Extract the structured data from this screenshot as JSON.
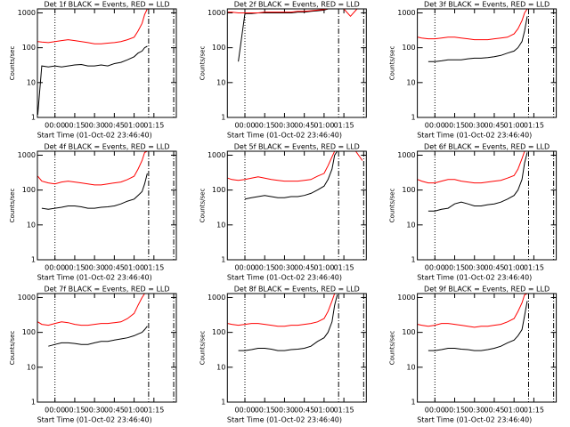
{
  "chart_data": [
    {
      "type": "line",
      "title": "Det 1f BLACK = Events, RED = LLD",
      "xlabel": "Start Time (01-Oct-02 23:46:40)",
      "ylabel": "Counts/sec",
      "yscale": "log",
      "x": [
        -13,
        -10,
        -5,
        0,
        5,
        10,
        15,
        20,
        25,
        30,
        35,
        40,
        45,
        50,
        55,
        60,
        63,
        66,
        68,
        70
      ],
      "series": [
        {
          "name": "Events",
          "color": "#000000",
          "values": [
            1.2,
            30,
            28,
            30,
            28,
            30,
            32,
            33,
            30,
            30,
            32,
            30,
            35,
            38,
            45,
            55,
            70,
            80,
            100,
            110
          ]
        },
        {
          "name": "LLD",
          "color": "#ff0000",
          "values": [
            150,
            145,
            140,
            150,
            160,
            170,
            160,
            150,
            140,
            130,
            130,
            135,
            140,
            150,
            170,
            200,
            300,
            500,
            900,
            1300
          ]
        }
      ],
      "vlines": [
        0,
        71,
        90
      ],
      "vline_styles": [
        "dotted",
        "dash-dot",
        "dash-dot"
      ],
      "xlim": [
        -13.3,
        92
      ],
      "xticks": [
        {
          "value": 0,
          "label": "00:00"
        },
        {
          "value": 15,
          "label": "00:15"
        },
        {
          "value": 30,
          "label": "00:30"
        },
        {
          "value": 45,
          "label": "00:45"
        },
        {
          "value": 60,
          "label": "01:00"
        },
        {
          "value": 75,
          "label": "01:15"
        }
      ],
      "ylim": [
        1,
        1300
      ],
      "yticks": [
        1,
        10,
        100,
        1000
      ]
    },
    {
      "type": "line",
      "title": "Det 2f BLACK = Events, RED = LLD",
      "xlabel": "Start Time (01-Oct-02 23:46:40)",
      "ylabel": "Counts/sec",
      "yscale": "log",
      "x": [
        -13,
        -10,
        -5,
        0,
        5,
        10,
        15,
        20,
        25,
        30,
        35,
        40,
        45,
        50,
        55,
        60,
        63,
        66,
        68,
        70,
        75,
        80,
        85,
        89
      ],
      "series": [
        {
          "name": "Events",
          "color": "#000000",
          "values": [
            null,
            null,
            40,
            950,
            950,
            1000,
            1000,
            1000,
            1000,
            1000,
            1000,
            1050,
            1050,
            1100,
            1150,
            1200,
            1300,
            1300,
            1300,
            1300,
            null,
            null,
            null,
            null
          ]
        },
        {
          "name": "LLD",
          "color": "#ff0000",
          "values": [
            1050,
            1050,
            1000,
            1000,
            1000,
            1000,
            1050,
            1050,
            1050,
            1050,
            1050,
            1100,
            1100,
            1150,
            1200,
            1250,
            1300,
            1300,
            1300,
            1300,
            1300,
            800,
            1300,
            1300
          ]
        }
      ],
      "vlines": [
        0,
        71,
        90
      ],
      "vline_styles": [
        "dotted",
        "dash-dot",
        "dash-dot"
      ],
      "xlim": [
        -13.3,
        92
      ],
      "xticks": [
        {
          "value": 0,
          "label": "00:00"
        },
        {
          "value": 15,
          "label": "00:15"
        },
        {
          "value": 30,
          "label": "00:30"
        },
        {
          "value": 45,
          "label": "00:45"
        },
        {
          "value": 60,
          "label": "01:00"
        },
        {
          "value": 75,
          "label": "01:15"
        }
      ],
      "ylim": [
        1,
        1300
      ],
      "yticks": [
        1,
        10,
        100,
        1000
      ]
    },
    {
      "type": "line",
      "title": "Det 3f BLACK = Events, RED = LLD",
      "xlabel": "Start Time (01-Oct-02 23:46:40)",
      "ylabel": "Counts/sec",
      "yscale": "log",
      "x": [
        -13,
        -10,
        -5,
        0,
        5,
        10,
        15,
        20,
        25,
        30,
        35,
        40,
        45,
        50,
        55,
        60,
        63,
        66,
        68,
        70
      ],
      "series": [
        {
          "name": "Events",
          "color": "#000000",
          "values": [
            null,
            null,
            40,
            40,
            42,
            45,
            45,
            45,
            48,
            50,
            50,
            52,
            55,
            60,
            70,
            80,
            100,
            150,
            300,
            800
          ]
        },
        {
          "name": "LLD",
          "color": "#ff0000",
          "values": [
            200,
            190,
            180,
            180,
            190,
            200,
            200,
            190,
            180,
            170,
            170,
            170,
            180,
            190,
            200,
            250,
            350,
            600,
            1000,
            1300
          ]
        }
      ],
      "vlines": [
        0,
        71,
        90
      ],
      "vline_styles": [
        "dotted",
        "dash-dot",
        "dash-dot"
      ],
      "xlim": [
        -13.3,
        92
      ],
      "xticks": [
        {
          "value": 0,
          "label": "00:00"
        },
        {
          "value": 15,
          "label": "00:15"
        },
        {
          "value": 30,
          "label": "00:30"
        },
        {
          "value": 45,
          "label": "00:45"
        },
        {
          "value": 60,
          "label": "01:00"
        },
        {
          "value": 75,
          "label": "01:15"
        }
      ],
      "ylim": [
        1,
        1300
      ],
      "yticks": [
        1,
        10,
        100,
        1000
      ]
    },
    {
      "type": "line",
      "title": "Det 4f BLACK = Events, RED = LLD",
      "xlabel": "Start Time (01-Oct-02 23:46:40)",
      "ylabel": "Counts/sec",
      "yscale": "log",
      "x": [
        -13,
        -10,
        -5,
        0,
        5,
        10,
        15,
        20,
        25,
        30,
        35,
        40,
        45,
        50,
        55,
        60,
        63,
        66,
        68,
        70
      ],
      "series": [
        {
          "name": "Events",
          "color": "#000000",
          "values": [
            null,
            30,
            28,
            30,
            32,
            35,
            35,
            33,
            30,
            30,
            32,
            33,
            35,
            40,
            48,
            55,
            70,
            90,
            150,
            300
          ]
        },
        {
          "name": "LLD",
          "color": "#ff0000",
          "values": [
            250,
            180,
            160,
            150,
            170,
            180,
            170,
            160,
            150,
            140,
            140,
            150,
            160,
            170,
            200,
            250,
            400,
            700,
            1200,
            1300
          ]
        }
      ],
      "vlines": [
        0,
        71,
        90
      ],
      "vline_styles": [
        "dotted",
        "dash-dot",
        "dash-dot"
      ],
      "xlim": [
        -13.3,
        92
      ],
      "xticks": [
        {
          "value": 0,
          "label": "00:00"
        },
        {
          "value": 15,
          "label": "00:15"
        },
        {
          "value": 30,
          "label": "00:30"
        },
        {
          "value": 45,
          "label": "00:45"
        },
        {
          "value": 60,
          "label": "01:00"
        },
        {
          "value": 75,
          "label": "01:15"
        }
      ],
      "ylim": [
        1,
        1300
      ],
      "yticks": [
        1,
        10,
        100,
        1000
      ]
    },
    {
      "type": "line",
      "title": "Det 5f BLACK = Events, RED = LLD",
      "xlabel": "Start Time (01-Oct-02 23:46:40)",
      "ylabel": "Counts/sec",
      "yscale": "log",
      "x": [
        -13,
        -10,
        -5,
        0,
        5,
        10,
        15,
        20,
        25,
        30,
        35,
        40,
        45,
        50,
        55,
        60,
        63,
        66,
        68,
        70,
        78,
        84,
        89
      ],
      "series": [
        {
          "name": "Events",
          "color": "#000000",
          "values": [
            null,
            null,
            null,
            55,
            60,
            65,
            70,
            65,
            60,
            60,
            65,
            65,
            70,
            80,
            100,
            130,
            200,
            400,
            1000,
            1300,
            null,
            null,
            null
          ]
        },
        {
          "name": "LLD",
          "color": "#ff0000",
          "values": [
            220,
            200,
            190,
            200,
            220,
            240,
            220,
            200,
            190,
            180,
            180,
            180,
            190,
            200,
            250,
            300,
            500,
            900,
            1300,
            1300,
            1300,
            1300,
            700
          ]
        }
      ],
      "vlines": [
        0,
        71,
        90
      ],
      "vline_styles": [
        "dotted",
        "dash-dot",
        "dash-dot"
      ],
      "xlim": [
        -13.3,
        92
      ],
      "xticks": [
        {
          "value": 0,
          "label": "00:00"
        },
        {
          "value": 15,
          "label": "00:15"
        },
        {
          "value": 30,
          "label": "00:30"
        },
        {
          "value": 45,
          "label": "00:45"
        },
        {
          "value": 60,
          "label": "01:00"
        },
        {
          "value": 75,
          "label": "01:15"
        }
      ],
      "ylim": [
        1,
        1300
      ],
      "yticks": [
        1,
        10,
        100,
        1000
      ]
    },
    {
      "type": "line",
      "title": "Det 6f BLACK = Events, RED = LLD",
      "xlabel": "Start Time (01-Oct-02 23:46:40)",
      "ylabel": "Counts/sec",
      "yscale": "log",
      "x": [
        -13,
        -10,
        -5,
        0,
        5,
        10,
        15,
        20,
        25,
        30,
        35,
        40,
        45,
        50,
        55,
        60,
        63,
        66,
        68,
        70
      ],
      "series": [
        {
          "name": "Events",
          "color": "#000000",
          "values": [
            null,
            null,
            25,
            25,
            28,
            30,
            40,
            45,
            40,
            35,
            35,
            38,
            40,
            45,
            55,
            70,
            100,
            200,
            600,
            1200
          ]
        },
        {
          "name": "LLD",
          "color": "#ff0000",
          "values": [
            200,
            180,
            160,
            160,
            180,
            200,
            200,
            180,
            170,
            160,
            160,
            170,
            180,
            190,
            220,
            260,
            400,
            800,
            1300,
            1300
          ]
        }
      ],
      "vlines": [
        0,
        71,
        90
      ],
      "vline_styles": [
        "dotted",
        "dash-dot",
        "dash-dot"
      ],
      "xlim": [
        -13.3,
        92
      ],
      "xticks": [
        {
          "value": 0,
          "label": "00:00"
        },
        {
          "value": 15,
          "label": "00:15"
        },
        {
          "value": 30,
          "label": "00:30"
        },
        {
          "value": 45,
          "label": "00:45"
        },
        {
          "value": 60,
          "label": "01:00"
        },
        {
          "value": 75,
          "label": "01:15"
        }
      ],
      "ylim": [
        1,
        1300
      ],
      "yticks": [
        1,
        10,
        100,
        1000
      ]
    },
    {
      "type": "line",
      "title": "Det 7f BLACK = Events, RED = LLD",
      "xlabel": "Start Time (01-Oct-02 23:46:40)",
      "ylabel": "Counts/sec",
      "yscale": "log",
      "x": [
        -13,
        -10,
        -5,
        0,
        5,
        10,
        15,
        20,
        25,
        30,
        35,
        40,
        45,
        50,
        55,
        60,
        63,
        66,
        68,
        70
      ],
      "series": [
        {
          "name": "Events",
          "color": "#000000",
          "values": [
            null,
            null,
            40,
            45,
            50,
            50,
            48,
            45,
            45,
            50,
            55,
            55,
            60,
            65,
            70,
            80,
            90,
            100,
            120,
            150
          ]
        },
        {
          "name": "LLD",
          "color": "#ff0000",
          "values": [
            200,
            170,
            160,
            180,
            200,
            190,
            170,
            160,
            160,
            170,
            180,
            180,
            190,
            200,
            250,
            350,
            600,
            1000,
            1300,
            1300
          ]
        }
      ],
      "vlines": [
        0,
        71,
        90
      ],
      "vline_styles": [
        "dotted",
        "dash-dot",
        "dash-dot"
      ],
      "xlim": [
        -13.3,
        92
      ],
      "xticks": [
        {
          "value": 0,
          "label": "00:00"
        },
        {
          "value": 15,
          "label": "00:15"
        },
        {
          "value": 30,
          "label": "00:30"
        },
        {
          "value": 45,
          "label": "00:45"
        },
        {
          "value": 60,
          "label": "01:00"
        },
        {
          "value": 75,
          "label": "01:15"
        }
      ],
      "ylim": [
        1,
        1300
      ],
      "yticks": [
        1,
        10,
        100,
        1000
      ]
    },
    {
      "type": "line",
      "title": "Det 8f BLACK = Events, RED = LLD",
      "xlabel": "Start Time (01-Oct-02 23:46:40)",
      "ylabel": "Counts/sec",
      "yscale": "log",
      "x": [
        -13,
        -10,
        -5,
        0,
        5,
        10,
        15,
        20,
        25,
        30,
        35,
        40,
        45,
        50,
        55,
        60,
        63,
        66,
        68,
        70
      ],
      "series": [
        {
          "name": "Events",
          "color": "#000000",
          "values": [
            null,
            null,
            30,
            30,
            32,
            35,
            35,
            33,
            30,
            30,
            32,
            33,
            35,
            40,
            55,
            70,
            100,
            200,
            600,
            1200
          ]
        },
        {
          "name": "LLD",
          "color": "#ff0000",
          "values": [
            180,
            170,
            160,
            170,
            180,
            180,
            170,
            160,
            150,
            150,
            160,
            160,
            170,
            180,
            200,
            250,
            400,
            800,
            1300,
            1300
          ]
        }
      ],
      "vlines": [
        0,
        71,
        90
      ],
      "vline_styles": [
        "dotted",
        "dash-dot",
        "dash-dot"
      ],
      "xlim": [
        -13.3,
        92
      ],
      "xticks": [
        {
          "value": 0,
          "label": "00:00"
        },
        {
          "value": 15,
          "label": "00:15"
        },
        {
          "value": 30,
          "label": "00:30"
        },
        {
          "value": 45,
          "label": "00:45"
        },
        {
          "value": 60,
          "label": "01:00"
        },
        {
          "value": 75,
          "label": "01:15"
        }
      ],
      "ylim": [
        1,
        1300
      ],
      "yticks": [
        1,
        10,
        100,
        1000
      ]
    },
    {
      "type": "line",
      "title": "Det 9f BLACK = Events, RED = LLD",
      "xlabel": "Start Time (01-Oct-02 23:46:40)",
      "ylabel": "Counts/sec",
      "yscale": "log",
      "x": [
        -13,
        -10,
        -5,
        0,
        5,
        10,
        15,
        20,
        25,
        30,
        35,
        40,
        45,
        50,
        55,
        60,
        63,
        66,
        68,
        70
      ],
      "series": [
        {
          "name": "Events",
          "color": "#000000",
          "values": [
            null,
            null,
            30,
            30,
            32,
            35,
            35,
            33,
            32,
            30,
            30,
            32,
            35,
            40,
            50,
            60,
            80,
            120,
            300,
            800
          ]
        },
        {
          "name": "LLD",
          "color": "#ff0000",
          "values": [
            170,
            160,
            150,
            160,
            180,
            180,
            170,
            160,
            150,
            140,
            150,
            150,
            160,
            170,
            200,
            250,
            400,
            700,
            1200,
            1300
          ]
        }
      ],
      "vlines": [
        0,
        71,
        90
      ],
      "vline_styles": [
        "dotted",
        "dash-dot",
        "dash-dot"
      ],
      "xlim": [
        -13.3,
        92
      ],
      "xticks": [
        {
          "value": 0,
          "label": "00:00"
        },
        {
          "value": 15,
          "label": "00:15"
        },
        {
          "value": 30,
          "label": "00:30"
        },
        {
          "value": 45,
          "label": "00:45"
        },
        {
          "value": 60,
          "label": "01:00"
        },
        {
          "value": 75,
          "label": "01:15"
        }
      ],
      "ylim": [
        1,
        1300
      ],
      "yticks": [
        1,
        10,
        100,
        1000
      ]
    }
  ]
}
